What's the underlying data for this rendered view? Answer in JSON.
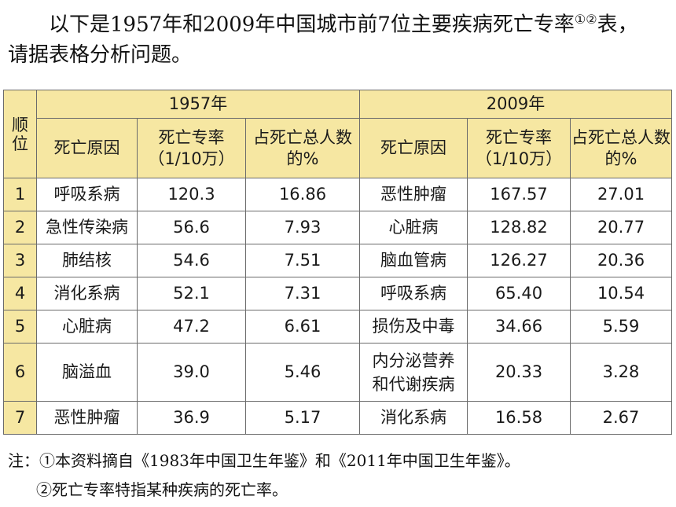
{
  "intro": {
    "line1": "以下是1957年和2009年中国城市前7位主要疾病死亡专率",
    "sup": "①②",
    "line1_end": "表，",
    "line2": "请据表格分析问题。"
  },
  "table": {
    "rank_header": "顺位",
    "year_a": "1957年",
    "year_b": "2009年",
    "col_cause": "死亡原因",
    "col_rate": "死亡专率（1/10万）",
    "col_share": "占死亡总人数的%",
    "rows": [
      {
        "rank": "1",
        "cause_a": "呼吸系病",
        "rate_a": "120.3",
        "share_a": "16.86",
        "cause_b": "恶性肿瘤",
        "rate_b": "167.57",
        "share_b": "27.01"
      },
      {
        "rank": "2",
        "cause_a": "急性传染病",
        "rate_a": "56.6",
        "share_a": "7.93",
        "cause_b": "心脏病",
        "rate_b": "128.82",
        "share_b": "20.77"
      },
      {
        "rank": "3",
        "cause_a": "肺结核",
        "rate_a": "54.6",
        "share_a": "7.51",
        "cause_b": "脑血管病",
        "rate_b": "126.27",
        "share_b": "20.36"
      },
      {
        "rank": "4",
        "cause_a": "消化系病",
        "rate_a": "52.1",
        "share_a": "7.31",
        "cause_b": "呼吸系病",
        "rate_b": "65.40",
        "share_b": "10.54"
      },
      {
        "rank": "5",
        "cause_a": "心脏病",
        "rate_a": "47.2",
        "share_a": "6.61",
        "cause_b": "损伤及中毒",
        "rate_b": "34.66",
        "share_b": "5.59"
      },
      {
        "rank": "6",
        "cause_a": "脑溢血",
        "rate_a": "39.0",
        "share_a": "5.46",
        "cause_b": "内分泌营养和代谢疾病",
        "rate_b": "20.33",
        "share_b": "3.28"
      },
      {
        "rank": "7",
        "cause_a": "恶性肿瘤",
        "rate_a": "36.9",
        "share_a": "5.17",
        "cause_b": "消化系病",
        "rate_b": "16.58",
        "share_b": "2.67"
      }
    ]
  },
  "notes": {
    "n1": "注：①本资料摘自《1983年中国卫生年鉴》和《2011年中国卫生年鉴》。",
    "n2": "②死亡专率特指某种疾病的死亡率。"
  }
}
